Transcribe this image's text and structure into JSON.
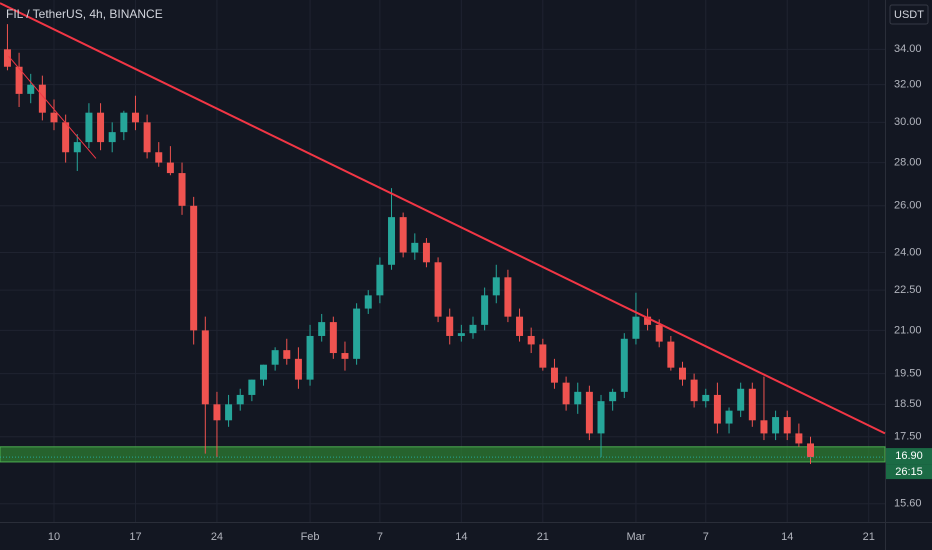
{
  "chart_data": {
    "type": "candlestick",
    "title": "FIL / TetherUS, 4h, BINANCE",
    "currency": "USDT",
    "log_scale": true,
    "grid": true,
    "up_color": "#26a69a",
    "down_color": "#ef5350",
    "x": [
      6,
      7,
      8,
      9,
      10,
      11,
      12,
      13,
      14,
      15,
      16,
      17,
      18,
      19,
      20,
      21,
      22,
      23,
      24,
      25,
      26,
      27,
      28,
      29,
      30,
      31,
      32,
      33,
      34,
      35,
      36,
      37,
      38,
      39,
      40,
      41,
      42,
      43,
      44,
      45,
      46,
      47,
      48,
      49,
      50,
      51,
      52,
      53,
      54,
      55,
      56,
      57,
      58,
      59,
      60,
      61,
      62,
      63,
      64,
      65,
      66,
      67,
      68,
      69,
      70,
      71,
      72,
      73,
      74,
      75
    ],
    "open": [
      34.0,
      33.0,
      31.5,
      32.0,
      30.5,
      30.0,
      28.5,
      29.0,
      30.5,
      29.0,
      29.5,
      30.5,
      30.0,
      28.5,
      28.0,
      27.5,
      26.0,
      21.0,
      18.5,
      18.0,
      18.5,
      18.8,
      19.3,
      19.8,
      20.3,
      20.0,
      19.3,
      20.8,
      21.3,
      20.2,
      20.0,
      21.8,
      22.3,
      23.5,
      25.5,
      24.0,
      24.4,
      23.6,
      21.5,
      20.8,
      20.9,
      21.2,
      22.3,
      23.0,
      21.5,
      20.8,
      20.5,
      19.7,
      19.2,
      18.5,
      18.9,
      17.6,
      18.6,
      18.9,
      20.7,
      21.5,
      21.2,
      20.6,
      19.7,
      19.3,
      18.6,
      18.8,
      17.9,
      18.3,
      19.0,
      18.0,
      17.6,
      18.1,
      17.6,
      17.3
    ],
    "high": [
      35.5,
      33.8,
      32.6,
      32.5,
      31.2,
      30.4,
      29.4,
      31.0,
      31.0,
      30.0,
      30.6,
      31.4,
      30.4,
      29.0,
      28.8,
      28.0,
      26.4,
      21.5,
      18.9,
      18.8,
      19.0,
      19.3,
      19.8,
      20.4,
      20.7,
      20.4,
      21.2,
      21.6,
      21.5,
      20.6,
      22.0,
      22.5,
      23.8,
      26.8,
      25.7,
      24.8,
      24.6,
      23.8,
      21.8,
      21.2,
      21.5,
      22.6,
      23.5,
      23.3,
      21.8,
      21.1,
      20.7,
      20.0,
      19.4,
      19.2,
      19.1,
      18.8,
      19.0,
      20.9,
      22.4,
      21.8,
      21.4,
      20.8,
      19.9,
      19.5,
      19.0,
      19.2,
      18.4,
      19.2,
      19.2,
      19.4,
      18.3,
      18.3,
      17.9,
      17.5
    ],
    "low": [
      32.8,
      30.8,
      31.0,
      30.1,
      29.6,
      28.0,
      27.6,
      28.7,
      28.6,
      28.5,
      29.1,
      29.6,
      28.2,
      27.8,
      27.4,
      25.6,
      20.5,
      17.0,
      16.9,
      17.8,
      18.3,
      18.6,
      19.1,
      19.6,
      19.8,
      19.0,
      19.1,
      20.6,
      20.0,
      19.6,
      19.8,
      21.6,
      22.0,
      23.3,
      23.8,
      23.7,
      23.4,
      21.3,
      20.5,
      20.6,
      20.7,
      21.0,
      22.0,
      21.3,
      20.6,
      20.2,
      19.6,
      19.0,
      18.3,
      18.2,
      17.4,
      16.9,
      18.3,
      18.7,
      20.5,
      21.0,
      20.4,
      19.6,
      19.1,
      18.4,
      18.4,
      17.6,
      17.6,
      18.1,
      17.8,
      17.4,
      17.4,
      17.4,
      17.2,
      16.7
    ],
    "close": [
      33.0,
      31.5,
      32.0,
      30.5,
      30.0,
      28.5,
      29.0,
      30.5,
      29.0,
      29.5,
      30.5,
      30.0,
      28.5,
      28.0,
      27.5,
      26.0,
      21.0,
      18.5,
      18.0,
      18.5,
      18.8,
      19.3,
      19.8,
      20.3,
      20.0,
      19.3,
      20.8,
      21.3,
      20.2,
      20.0,
      21.8,
      22.3,
      23.5,
      25.5,
      24.0,
      24.4,
      23.6,
      21.5,
      20.8,
      20.9,
      21.2,
      22.3,
      23.0,
      21.5,
      20.8,
      20.5,
      19.7,
      19.2,
      18.5,
      18.9,
      17.6,
      18.6,
      18.9,
      20.7,
      21.5,
      21.2,
      20.6,
      19.7,
      19.3,
      18.6,
      18.8,
      17.9,
      18.3,
      19.0,
      18.0,
      17.6,
      18.1,
      17.6,
      17.3,
      16.9
    ],
    "xlim": [
      5.36,
      81.4
    ],
    "xticks": [
      {
        "value": 10,
        "label": "10"
      },
      {
        "value": 17,
        "label": "17"
      },
      {
        "value": 24,
        "label": "24"
      },
      {
        "value": 32,
        "label": "Feb"
      },
      {
        "value": 38,
        "label": "7"
      },
      {
        "value": 45,
        "label": "14"
      },
      {
        "value": 52,
        "label": "21"
      },
      {
        "value": 60,
        "label": "Mar"
      },
      {
        "value": 66,
        "label": "7"
      },
      {
        "value": 73,
        "label": "14"
      },
      {
        "value": 80,
        "label": "21"
      }
    ],
    "ylim": [
      15.12,
      37.0
    ],
    "yticks": [
      {
        "value": 34,
        "label": "34.00"
      },
      {
        "value": 32,
        "label": "32.00"
      },
      {
        "value": 30,
        "label": "30.00"
      },
      {
        "value": 28,
        "label": "28.00"
      },
      {
        "value": 26,
        "label": "26.00"
      },
      {
        "value": 24,
        "label": "24.00"
      },
      {
        "value": 22.5,
        "label": "22.50"
      },
      {
        "value": 21,
        "label": "21.00"
      },
      {
        "value": 19.5,
        "label": "19.50"
      },
      {
        "value": 18.5,
        "label": "18.50"
      },
      {
        "value": 17.5,
        "label": "17.50"
      },
      {
        "value": 15.6,
        "label": "15.60"
      }
    ],
    "trendlines": [
      {
        "x": [
          5.36,
          81.4
        ],
        "y": [
          36.8,
          17.6
        ],
        "color": "#f23645",
        "width": 2
      },
      {
        "x": [
          6.1,
          13.6
        ],
        "y": [
          33.6,
          28.2
        ],
        "color": "#f23645",
        "width": 1
      }
    ],
    "zones": [
      {
        "y": [
          16.76,
          17.2
        ],
        "color": "#2e7d32"
      }
    ],
    "last_price": {
      "value": 16.9,
      "label": "16.90"
    },
    "countdown": "26:15"
  }
}
